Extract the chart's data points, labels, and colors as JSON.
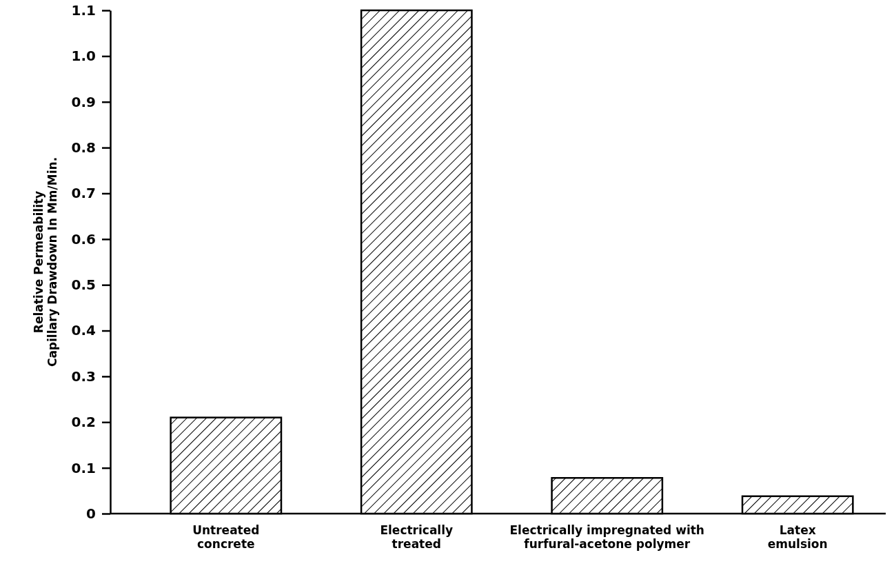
{
  "chart_data": {
    "type": "bar",
    "ylabel": "Relative Permeability\nCapillary Drawdown In Mm/Min.",
    "categories": [
      "Untreated concrete",
      "Electrically treated",
      "Electrically impregnated with furfural-acetone polymer",
      "Latex emulsion"
    ],
    "values": [
      0.21,
      1.1,
      0.078,
      0.038
    ],
    "color": "#000000",
    "ylim": [
      0,
      1.1
    ],
    "yticks": [
      0,
      0.1,
      0.2,
      0.3,
      0.4,
      0.5,
      0.6,
      0.7,
      0.8,
      0.9,
      {
        "value": 1,
        "label": "1.0"
      },
      1.1
    ],
    "grid": false
  }
}
